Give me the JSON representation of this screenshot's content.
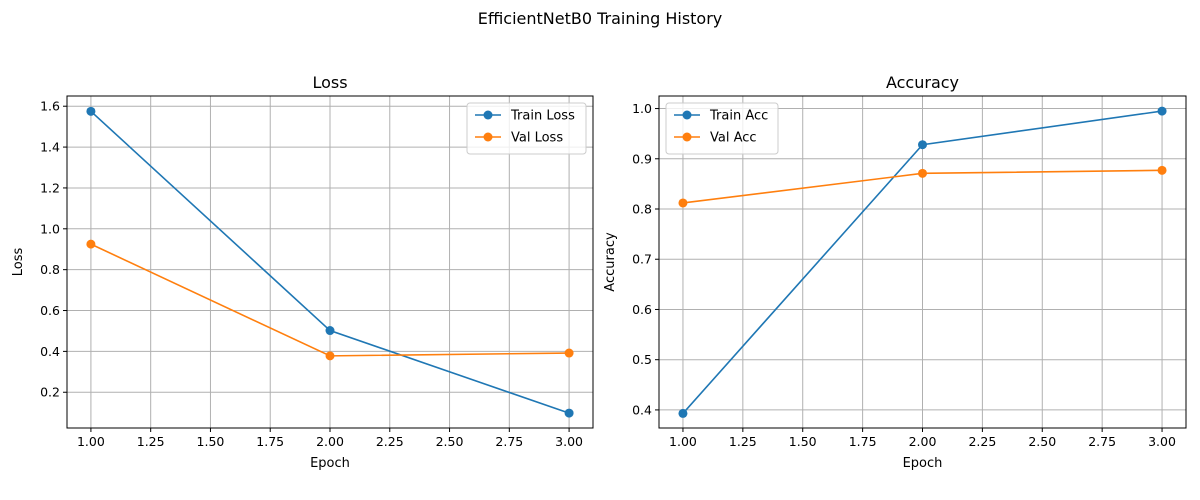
{
  "figure": {
    "title": "EfficientNetB0 Training History"
  },
  "colors": {
    "train": "#1f77b4",
    "val": "#ff7f0e",
    "grid": "#b0b0b0"
  },
  "chart_data": [
    {
      "type": "line",
      "title": "Loss",
      "xlabel": "Epoch",
      "ylabel": "Loss",
      "xlim": [
        0.9,
        3.1
      ],
      "ylim": [
        0.025,
        1.65
      ],
      "xticks": [
        1.0,
        1.25,
        1.5,
        1.75,
        2.0,
        2.25,
        2.5,
        2.75,
        3.0
      ],
      "xtick_labels": [
        "1.00",
        "1.25",
        "1.50",
        "1.75",
        "2.00",
        "2.25",
        "2.50",
        "2.75",
        "3.00"
      ],
      "yticks": [
        0.2,
        0.4,
        0.6,
        0.8,
        1.0,
        1.2,
        1.4,
        1.6
      ],
      "ytick_labels": [
        "0.2",
        "0.4",
        "0.6",
        "0.8",
        "1.0",
        "1.2",
        "1.4",
        "1.6"
      ],
      "grid": true,
      "legend_position": "upper right",
      "x": [
        1,
        2,
        3
      ],
      "series": [
        {
          "name": "Train Loss",
          "color": "#1f77b4",
          "values": [
            1.575,
            0.502,
            0.098
          ]
        },
        {
          "name": "Val Loss",
          "color": "#ff7f0e",
          "values": [
            0.925,
            0.378,
            0.392
          ]
        }
      ]
    },
    {
      "type": "line",
      "title": "Accuracy",
      "xlabel": "Epoch",
      "ylabel": "Accuracy",
      "xlim": [
        0.9,
        3.1
      ],
      "ylim": [
        0.364,
        1.025
      ],
      "xticks": [
        1.0,
        1.25,
        1.5,
        1.75,
        2.0,
        2.25,
        2.5,
        2.75,
        3.0
      ],
      "xtick_labels": [
        "1.00",
        "1.25",
        "1.50",
        "1.75",
        "2.00",
        "2.25",
        "2.50",
        "2.75",
        "3.00"
      ],
      "yticks": [
        0.4,
        0.5,
        0.6,
        0.7,
        0.8,
        0.9,
        1.0
      ],
      "ytick_labels": [
        "0.4",
        "0.5",
        "0.6",
        "0.7",
        "0.8",
        "0.9",
        "1.0"
      ],
      "grid": true,
      "legend_position": "upper left",
      "x": [
        1,
        2,
        3
      ],
      "series": [
        {
          "name": "Train Acc",
          "color": "#1f77b4",
          "values": [
            0.393,
            0.928,
            0.995
          ]
        },
        {
          "name": "Val Acc",
          "color": "#ff7f0e",
          "values": [
            0.812,
            0.871,
            0.877
          ]
        }
      ]
    }
  ]
}
